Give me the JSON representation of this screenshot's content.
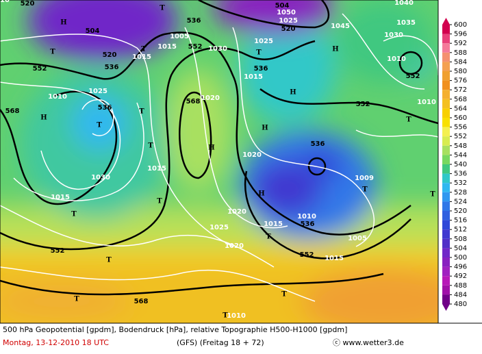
{
  "map": {
    "labels": [
      "520",
      "504",
      "520",
      "536",
      "552",
      "568",
      "536",
      "552",
      "536",
      "568",
      "536",
      "552",
      "552",
      "536",
      "536",
      "552",
      "552",
      "568",
      "504",
      "520",
      "H",
      "H",
      "H",
      "H",
      "H",
      "H",
      "H",
      "T",
      "T",
      "T",
      "T",
      "T",
      "T",
      "T",
      "T",
      "T",
      "T",
      "T",
      "T",
      "T",
      "T",
      "T",
      "T",
      "T",
      "1025",
      "1010",
      "1030",
      "1015",
      "1015",
      "1015",
      "1005",
      "1015",
      "1020",
      "1030",
      "1025",
      "1015",
      "1020",
      "1020",
      "1025",
      "1020",
      "1015",
      "1010",
      "1015",
      "1005",
      "1009",
      "1010",
      "1010",
      "1030",
      "1035",
      "1040",
      "1045",
      "1050",
      "1025",
      "1010",
      "1010"
    ]
  },
  "colorbar": {
    "ticks": [
      600,
      596,
      592,
      588,
      584,
      580,
      576,
      572,
      568,
      564,
      560,
      556,
      552,
      548,
      544,
      540,
      536,
      532,
      528,
      524,
      520,
      516,
      512,
      508,
      504,
      500,
      496,
      492,
      488,
      484,
      480
    ],
    "colors": [
      "#d2004e",
      "#e8407a",
      "#f47a9a",
      "#f49070",
      "#f4a050",
      "#f0a030",
      "#f09020",
      "#f4b030",
      "#f4c020",
      "#f8d000",
      "#f8e000",
      "#f4f050",
      "#d8ec50",
      "#a8e060",
      "#78d860",
      "#40c880",
      "#30c8c8",
      "#30b8f0",
      "#3098f0",
      "#3078e8",
      "#3060e0",
      "#3048d8",
      "#4038d0",
      "#5030c8",
      "#7028c8",
      "#8820c0",
      "#a020c0",
      "#b818b8",
      "#a010a8",
      "#880898",
      "#700088"
    ]
  },
  "footer": {
    "line1": "500 hPa Geopotential [gpdm], Bodendruck [hPa], relative Topographie H500-H1000 [gpdm]",
    "date": "Montag, 13-12-2010  18 UTC",
    "model": "(GFS)  (Freitag 18 + 72)",
    "credit": "ⓒ www.wetter3.de"
  }
}
